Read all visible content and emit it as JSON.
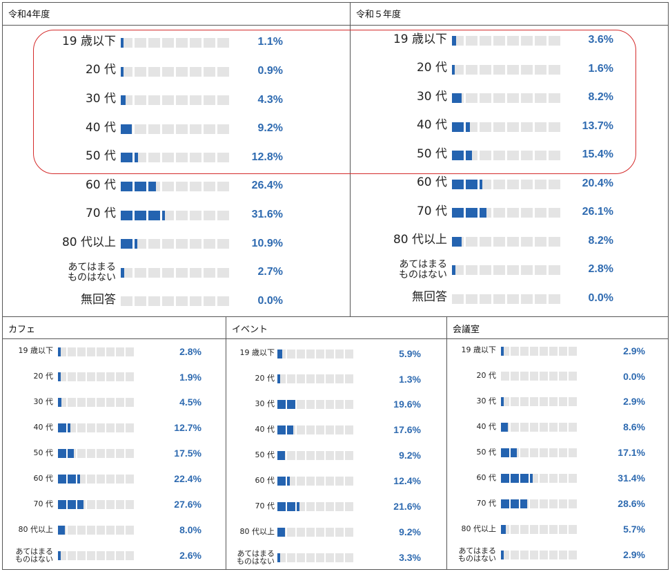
{
  "categories": [
    "19 歳以下",
    "20 代",
    "30 代",
    "40 代",
    "50 代",
    "60 代",
    "70 代",
    "80 代以上",
    "あてはまる\nものはない",
    "無回答"
  ],
  "colors": {
    "bar": "#2463b0",
    "track": "#e4e4e4",
    "value_text": "#2e6ab0",
    "highlight": "#d42a2a"
  },
  "chart_data": [
    {
      "type": "bar",
      "title": "令和4年度",
      "categories": [
        "19 歳以下",
        "20 代",
        "30 代",
        "40 代",
        "50 代",
        "60 代",
        "70 代",
        "80 代以上",
        "あてはまる\nものはない",
        "無回答"
      ],
      "values": [
        1.1,
        0.9,
        4.3,
        9.2,
        12.8,
        26.4,
        31.6,
        10.9,
        2.7,
        0.0
      ],
      "value_labels": [
        "1.1%",
        "0.9%",
        "4.3%",
        "9.2%",
        "12.8%",
        "26.4%",
        "31.6%",
        "10.9%",
        "2.7%",
        "0.0%"
      ],
      "xlim": [
        0,
        80
      ],
      "segments": 8
    },
    {
      "type": "bar",
      "title": "令和５年度",
      "categories": [
        "19 歳以下",
        "20 代",
        "30 代",
        "40 代",
        "50 代",
        "60 代",
        "70 代",
        "80 代以上",
        "あてはまる\nものはない",
        "無回答"
      ],
      "values": [
        3.6,
        1.6,
        8.2,
        13.7,
        15.4,
        20.4,
        26.1,
        8.2,
        2.8,
        0.0
      ],
      "value_labels": [
        "3.6%",
        "1.6%",
        "8.2%",
        "13.7%",
        "15.4%",
        "20.4%",
        "26.1%",
        "8.2%",
        "2.8%",
        "0.0%"
      ],
      "xlim": [
        0,
        80
      ],
      "segments": 8
    },
    {
      "type": "bar",
      "title": "カフェ",
      "categories": [
        "19 歳以下",
        "20 代",
        "30 代",
        "40 代",
        "50 代",
        "60 代",
        "70 代",
        "80 代以上",
        "あてはまる\nものはない"
      ],
      "values": [
        2.8,
        1.9,
        4.5,
        12.7,
        17.5,
        22.4,
        27.6,
        8.0,
        2.6
      ],
      "value_labels": [
        "2.8%",
        "1.9%",
        "4.5%",
        "12.7%",
        "17.5%",
        "22.4%",
        "27.6%",
        "8.0%",
        "2.6%"
      ],
      "xlim": [
        0,
        80
      ],
      "segments": 8
    },
    {
      "type": "bar",
      "title": "イベント",
      "categories": [
        "19 歳以下",
        "20 代",
        "30 代",
        "40 代",
        "50 代",
        "60 代",
        "70 代",
        "80 代以上",
        "あてはまる\nものはない"
      ],
      "values": [
        5.9,
        1.3,
        19.6,
        17.6,
        9.2,
        12.4,
        21.6,
        9.2,
        3.3
      ],
      "value_labels": [
        "5.9%",
        "1.3%",
        "19.6%",
        "17.6%",
        "9.2%",
        "12.4%",
        "21.6%",
        "9.2%",
        "3.3%"
      ],
      "xlim": [
        0,
        80
      ],
      "segments": 8
    },
    {
      "type": "bar",
      "title": "会議室",
      "categories": [
        "19 歳以下",
        "20 代",
        "30 代",
        "40 代",
        "50 代",
        "60 代",
        "70 代",
        "80 代以上",
        "あてはまる\nものはない"
      ],
      "values": [
        2.9,
        0.0,
        2.9,
        8.6,
        17.1,
        31.4,
        28.6,
        5.7,
        2.9
      ],
      "value_labels": [
        "2.9%",
        "0.0%",
        "2.9%",
        "8.6%",
        "17.1%",
        "31.4%",
        "28.6%",
        "5.7%",
        "2.9%"
      ],
      "xlim": [
        0,
        80
      ],
      "segments": 8
    }
  ]
}
